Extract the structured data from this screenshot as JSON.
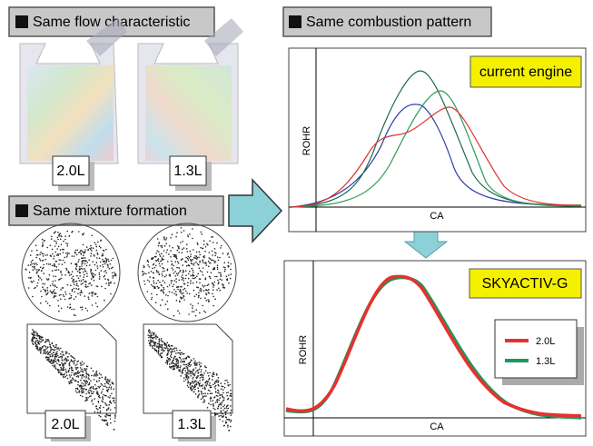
{
  "panels": {
    "flow": {
      "title": "Same flow characteristic",
      "labels": [
        "2.0L",
        "1.3L"
      ]
    },
    "mixture": {
      "title": "Same mixture formation",
      "labels": [
        "2.0L",
        "1.3L"
      ]
    },
    "combustion": {
      "title": "Same combustion pattern"
    },
    "current": {
      "badge": "current engine",
      "y_label": "ROHR",
      "x_label": "CA"
    },
    "skyactiv": {
      "badge": "SKYACTIV-G",
      "y_label": "ROHR",
      "x_label": "CA",
      "legend": [
        "2.0L",
        "1.3L"
      ]
    }
  }
}
